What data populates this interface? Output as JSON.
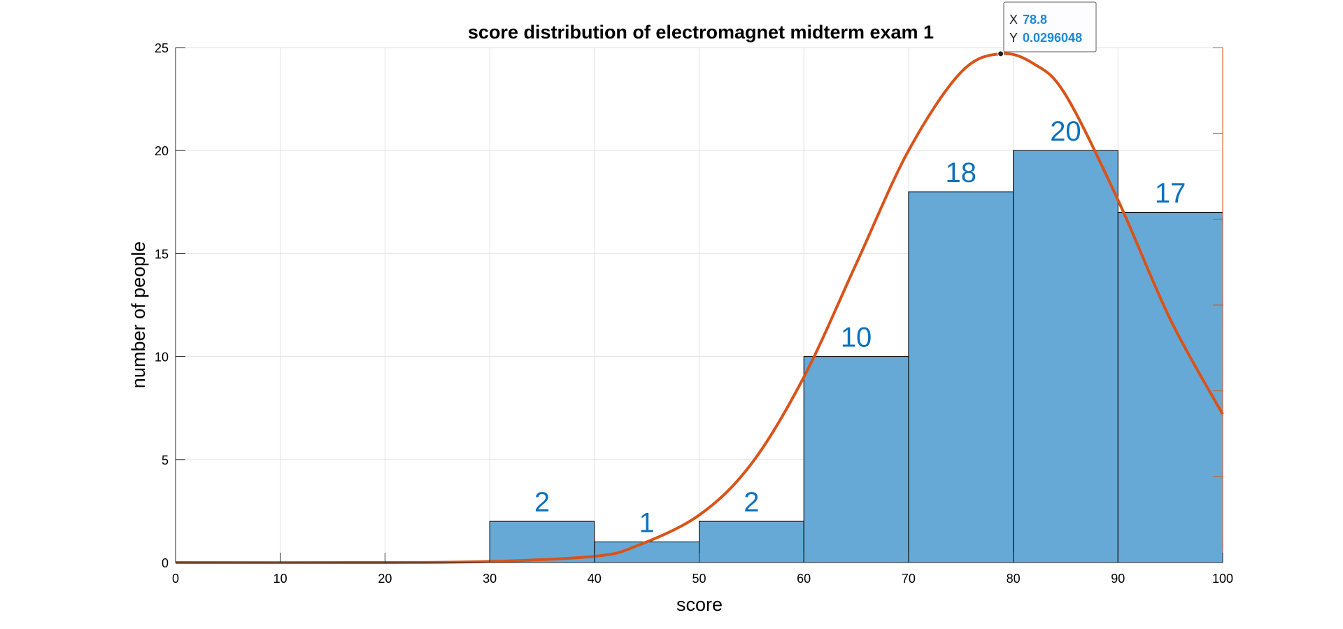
{
  "chart_data": {
    "type": "bar",
    "title": "score distribution of electromagnet midterm exam 1",
    "xlabel": "score",
    "ylabel": "number of people",
    "xlim": [
      0,
      100
    ],
    "ylim": [
      0,
      25
    ],
    "xticks": [
      "0",
      "10",
      "20",
      "30",
      "40",
      "50",
      "60",
      "70",
      "80",
      "90",
      "100"
    ],
    "yticks": [
      "0",
      "5",
      "10",
      "15",
      "20",
      "25"
    ],
    "grid": true,
    "bins": [
      {
        "start": 30,
        "end": 40,
        "count": 2,
        "label": "2"
      },
      {
        "start": 40,
        "end": 50,
        "count": 1,
        "label": "1"
      },
      {
        "start": 50,
        "end": 60,
        "count": 2,
        "label": "2"
      },
      {
        "start": 60,
        "end": 70,
        "count": 10,
        "label": "10"
      },
      {
        "start": 70,
        "end": 80,
        "count": 18,
        "label": "18"
      },
      {
        "start": 80,
        "end": 90,
        "count": 20,
        "label": "20"
      },
      {
        "start": 90,
        "end": 100,
        "count": 17,
        "label": "17"
      }
    ],
    "fit_curve": {
      "type": "normal-pdf",
      "mean": 78.8,
      "peak_y": 0.0296048,
      "x": [
        0,
        20,
        30,
        40,
        44,
        50,
        55,
        60,
        65,
        70,
        75,
        78.8,
        82,
        85,
        90,
        95,
        100
      ],
      "y_on_left_axis": [
        0,
        0,
        0.05,
        0.3,
        0.8,
        2.3,
        4.8,
        9.0,
        14.5,
        20.0,
        23.8,
        24.7,
        24.2,
        22.7,
        17.6,
        11.8,
        7.2
      ]
    },
    "datatip": {
      "x_key": "X",
      "x_value": "78.8",
      "y_key": "Y",
      "y_value": "0.0296048"
    },
    "colors": {
      "bar": "#67a9d6",
      "curve": "#d95319",
      "bar_label": "#0b72bd",
      "tip_value": "#1b8ad8"
    }
  }
}
